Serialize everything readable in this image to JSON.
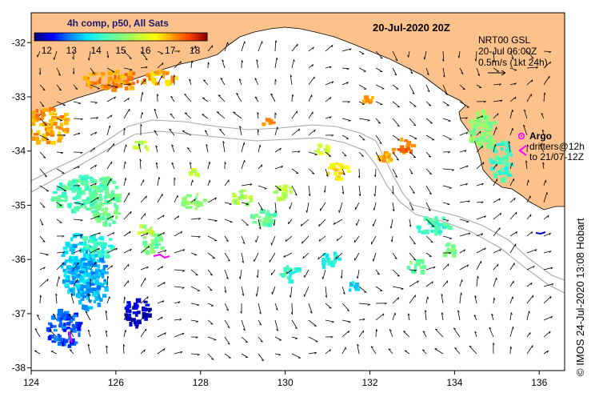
{
  "map": {
    "title_date": "20-Jul-2020 20Z",
    "colorbar": {
      "title": "4h comp, p50, All Sats",
      "ticks": [
        "12",
        "13",
        "14",
        "15",
        "16",
        "17",
        "18"
      ],
      "min": 11.5,
      "max": 18.5,
      "colors": [
        "#00007f",
        "#0000ff",
        "#0080ff",
        "#00e5ff",
        "#40ffbf",
        "#7fff7f",
        "#bfff40",
        "#ffff00",
        "#ffa000",
        "#ff4000",
        "#900000"
      ]
    },
    "current_info": {
      "line1": "NRT00 GSL",
      "line2": "20-Jul 06:00Z",
      "line3": "0.5m/s (1kt 24h)"
    },
    "legend": {
      "argo": "Argo",
      "drifters": "drifters@12h",
      "drifters_to": "to 21/07-12Z"
    },
    "axes": {
      "x_ticks": [
        "124",
        "126",
        "128",
        "130",
        "132",
        "134",
        "136"
      ],
      "y_ticks": [
        "-32",
        "-33",
        "-34",
        "-35",
        "-36",
        "-37",
        "-38"
      ],
      "lon_range": [
        124,
        136.6
      ],
      "lat_range": [
        -31.45,
        -38.05
      ]
    },
    "credit": "© IMOS 24-Jul-2020 13:08 Hobart",
    "colors": {
      "land": "#fdc28c",
      "coast": "#000000",
      "bathymetry": "#a8a8a8",
      "argo": "#ff00ff",
      "drifter": "#ff00ff"
    }
  }
}
